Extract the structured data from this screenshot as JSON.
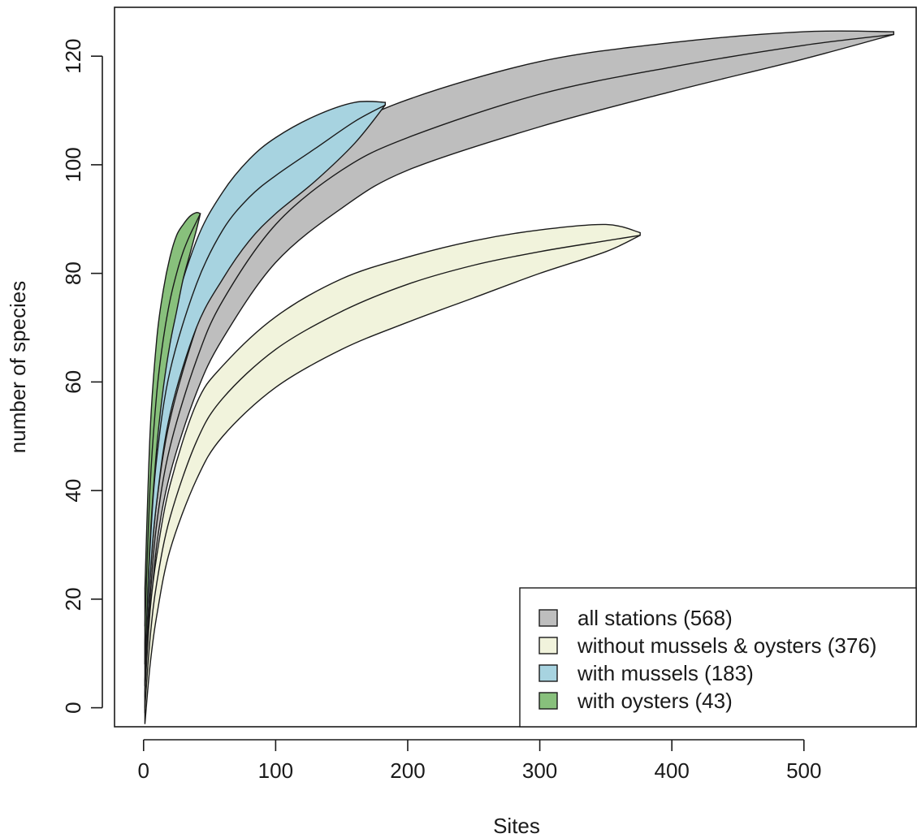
{
  "chart_data": {
    "type": "area",
    "xlabel": "Sites",
    "ylabel": "number of species",
    "xlim": [
      -22,
      585
    ],
    "ylim": [
      -3.5,
      129
    ],
    "xticks": [
      0,
      100,
      200,
      300,
      400,
      500
    ],
    "yticks": [
      0,
      20,
      40,
      60,
      80,
      100,
      120
    ],
    "grid": false,
    "legend_position": "bottom-right",
    "legend": [
      "all stations (568)",
      "without mussels & oysters (376)",
      "with mussels (183)",
      "with oysters (43)"
    ],
    "series": [
      {
        "name": "all stations (568)",
        "color": "#bebebe",
        "x": [
          1,
          5,
          10,
          20,
          40,
          60,
          100,
          150,
          200,
          300,
          400,
          500,
          568
        ],
        "mean": [
          2,
          20,
          34,
          48,
          64,
          75,
          89,
          99,
          105,
          113,
          118,
          122,
          124
        ],
        "upper": [
          5,
          24,
          38,
          53,
          70,
          82,
          96,
          106,
          112,
          119,
          122.5,
          124.5,
          124.5
        ],
        "lower": [
          -1,
          16,
          30,
          43,
          58,
          68,
          82,
          92,
          99,
          107,
          113.5,
          119.5,
          124
        ]
      },
      {
        "name": "without mussels & oysters (376)",
        "color": "#f1f3dc",
        "x": [
          1,
          5,
          10,
          20,
          40,
          60,
          100,
          150,
          200,
          250,
          300,
          350,
          376
        ],
        "mean": [
          0,
          13,
          23,
          35,
          49,
          57,
          66,
          73,
          78,
          81.5,
          84,
          86,
          87
        ],
        "upper": [
          3,
          18,
          28,
          41,
          56,
          63,
          72,
          79,
          83,
          86,
          88,
          89,
          87.5
        ],
        "lower": [
          -3,
          8,
          17,
          29,
          42,
          50,
          59,
          66,
          71,
          75.5,
          80,
          84,
          87
        ]
      },
      {
        "name": "with mussels (183)",
        "color": "#a7d3e0",
        "x": [
          1,
          5,
          10,
          20,
          40,
          60,
          80,
          100,
          130,
          160,
          183
        ],
        "mean": [
          8,
          30,
          46,
          62,
          78,
          88,
          94,
          98,
          103,
          108,
          111
        ],
        "upper": [
          12,
          36,
          53,
          70,
          86,
          95,
          101,
          105,
          109,
          111.5,
          111.5
        ],
        "lower": [
          4,
          24,
          38,
          54,
          70,
          79,
          86,
          91,
          97,
          104,
          111
        ]
      },
      {
        "name": "with oysters (43)",
        "color": "#88c07c",
        "x": [
          1,
          5,
          10,
          15,
          20,
          25,
          30,
          35,
          40,
          43
        ],
        "mean": [
          15,
          41,
          58,
          68,
          75,
          80,
          84,
          87,
          89.5,
          91
        ],
        "upper": [
          22,
          51,
          68,
          77,
          83,
          87,
          89,
          90.5,
          91.2,
          91
        ],
        "lower": [
          8,
          31,
          48,
          59,
          67,
          73,
          79,
          83.5,
          88,
          91
        ]
      }
    ]
  }
}
